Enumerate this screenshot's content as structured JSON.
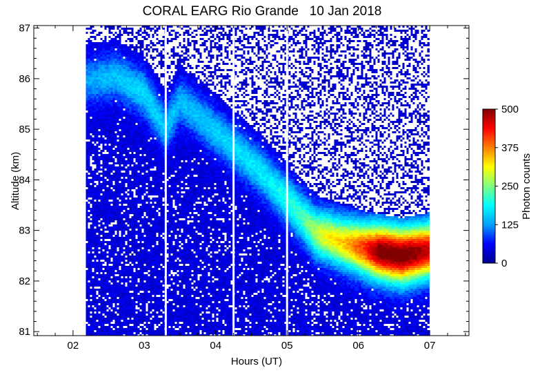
{
  "title": "CORAL EARG Rio Grande   10 Jan 2018",
  "chart_data": {
    "type": "heatmap",
    "title": "CORAL EARG Rio Grande   10 Jan 2018",
    "xlabel": "Hours (UT)",
    "ylabel": "Altitude (km)",
    "xlim": [
      1.45,
      7.55
    ],
    "ylim": [
      80.92,
      87.05
    ],
    "x_ticks": [
      {
        "value": 2,
        "label": "02"
      },
      {
        "value": 3,
        "label": "03"
      },
      {
        "value": 4,
        "label": "04"
      },
      {
        "value": 5,
        "label": "05"
      },
      {
        "value": 6,
        "label": "06"
      },
      {
        "value": 7,
        "label": "07"
      }
    ],
    "y_ticks": [
      {
        "value": 81,
        "label": "81"
      },
      {
        "value": 82,
        "label": "82"
      },
      {
        "value": 83,
        "label": "83"
      },
      {
        "value": 84,
        "label": "84"
      },
      {
        "value": 85,
        "label": "85"
      },
      {
        "value": 86,
        "label": "86"
      },
      {
        "value": 87,
        "label": "87"
      }
    ],
    "data_start_hour": 2.18,
    "data_end_hour": 6.98,
    "data_gaps_hours": [
      3.3,
      4.25,
      5.0
    ],
    "layer_centroid": {
      "hours": [
        2.2,
        2.6,
        3.0,
        3.3,
        3.5,
        3.8,
        4.2,
        4.6,
        5.0,
        5.4,
        5.8,
        6.2,
        6.6,
        6.98
      ],
      "altitude": [
        85.95,
        86.05,
        85.7,
        85.0,
        85.55,
        85.2,
        84.7,
        84.2,
        83.6,
        82.95,
        82.75,
        82.6,
        82.5,
        82.6
      ]
    },
    "layer_peak_counts": {
      "hours": [
        2.2,
        3.0,
        3.3,
        3.5,
        4.2,
        4.8,
        5.2,
        5.5,
        5.8,
        6.1,
        6.3,
        6.6,
        6.98
      ],
      "counts": [
        90,
        120,
        110,
        100,
        120,
        140,
        180,
        260,
        300,
        380,
        470,
        480,
        430
      ]
    },
    "colorbar": {
      "label": "Photon counts",
      "min": 0,
      "max": 500,
      "ticks": [
        "500",
        "375",
        "250",
        "125",
        "0"
      ],
      "colormap": [
        "#00008f",
        "#0000ff",
        "#00a0ff",
        "#00ffff",
        "#80ff80",
        "#ffff00",
        "#ff8000",
        "#ff0000",
        "#800000"
      ]
    },
    "grid": false,
    "legend": "colorbar-right"
  }
}
